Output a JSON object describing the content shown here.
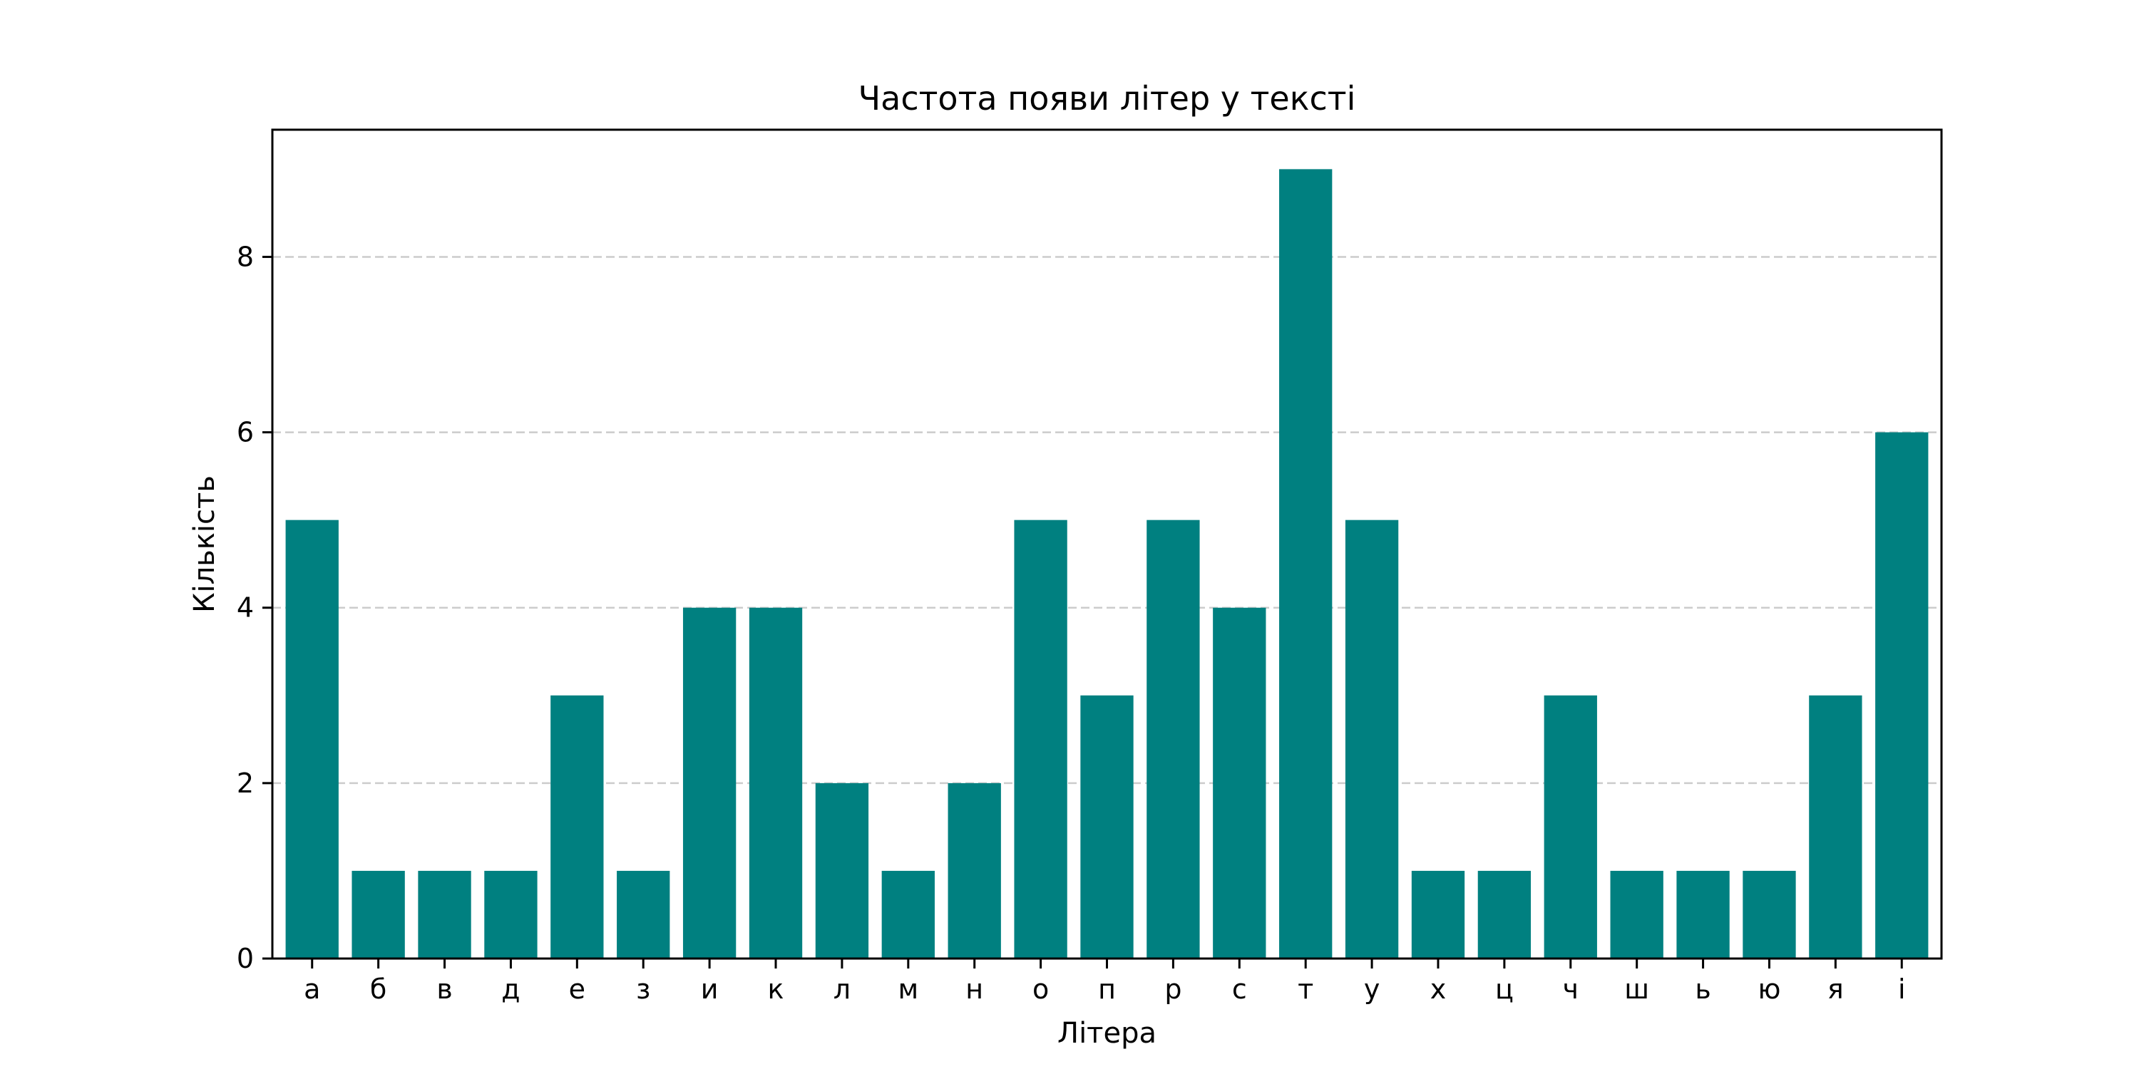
{
  "chart_data": {
    "type": "bar",
    "title": "Частота появи літер у тексті",
    "xlabel": "Літера",
    "ylabel": "Кількість",
    "categories": [
      "а",
      "б",
      "в",
      "д",
      "е",
      "з",
      "и",
      "к",
      "л",
      "м",
      "н",
      "о",
      "п",
      "р",
      "с",
      "т",
      "у",
      "х",
      "ц",
      "ч",
      "ш",
      "ь",
      "ю",
      "я",
      "і"
    ],
    "values": [
      5,
      1,
      1,
      1,
      3,
      1,
      4,
      4,
      2,
      1,
      2,
      5,
      3,
      5,
      4,
      9,
      5,
      1,
      1,
      3,
      1,
      1,
      1,
      3,
      6
    ],
    "ylim": [
      0,
      9.45
    ],
    "yticks": [
      0,
      2,
      4,
      6,
      8
    ],
    "grid": "y-dashed",
    "legend": "none",
    "colors": {
      "bar": "#008080",
      "grid": "#cccccc",
      "axes": "#000000"
    }
  }
}
